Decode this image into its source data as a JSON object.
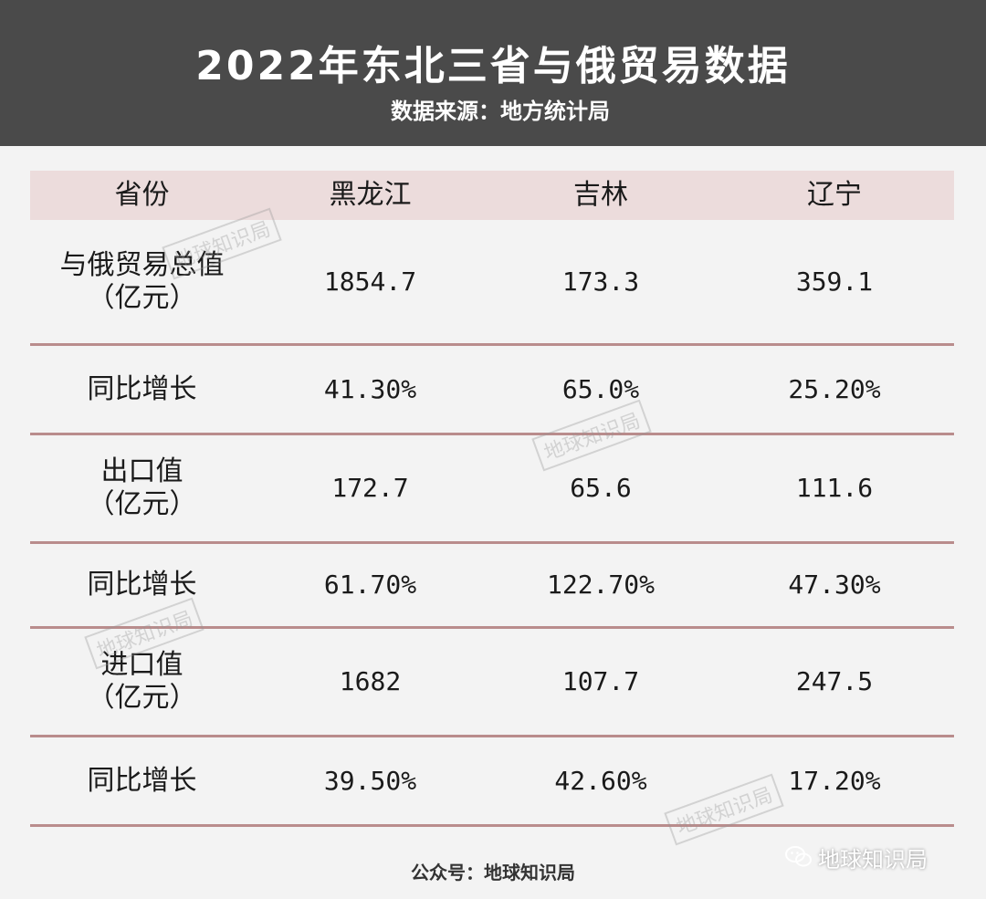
{
  "header": {
    "title": "2022年东北三省与俄贸易数据",
    "subtitle": "数据来源：地方统计局"
  },
  "table": {
    "columns": [
      "省份",
      "黑龙江",
      "吉林",
      "辽宁"
    ],
    "rows": [
      {
        "label_line1": "与俄贸易总值",
        "label_line2": "（亿元）",
        "values": [
          "1854.7",
          "173.3",
          "359.1"
        ]
      },
      {
        "label_line1": "同比增长",
        "label_line2": "",
        "values": [
          "41.30%",
          "65.0%",
          "25.20%"
        ]
      },
      {
        "label_line1": "出口值",
        "label_line2": "（亿元）",
        "values": [
          "172.7",
          "65.6",
          "111.6"
        ]
      },
      {
        "label_line1": "同比增长",
        "label_line2": "",
        "values": [
          "61.70%",
          "122.70%",
          "47.30%"
        ]
      },
      {
        "label_line1": "进口值",
        "label_line2": "（亿元）",
        "values": [
          "1682",
          "107.7",
          "247.5"
        ]
      },
      {
        "label_line1": "同比增长",
        "label_line2": "",
        "values": [
          "39.50%",
          "42.60%",
          "17.20%"
        ]
      }
    ]
  },
  "watermark": "地球知识局",
  "footer": "公众号：地球知识局",
  "wechat_badge": "地球知识局",
  "colors": {
    "header_bg": "#4a4a4a",
    "table_header_bg": "#ecdcdc",
    "row_divider": "#b98c8c",
    "page_bg": "#f3f3f3"
  }
}
